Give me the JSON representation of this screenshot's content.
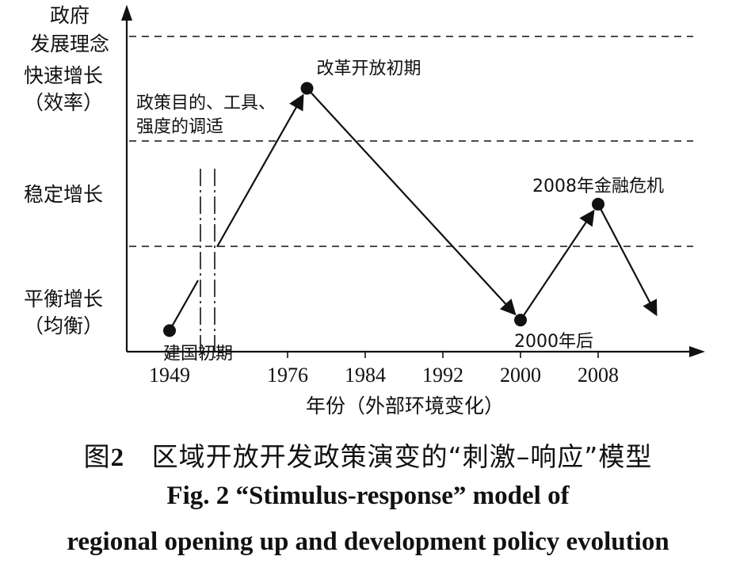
{
  "chart_data": {
    "type": "line",
    "y_axis_title": "政府\n发展理念",
    "y_levels": [
      {
        "label": "快速增长\n（效率）",
        "band": "high"
      },
      {
        "label": "稳定增长",
        "band": "mid"
      },
      {
        "label": "平衡增长\n（均衡）",
        "band": "low"
      }
    ],
    "x_tick_labels": [
      "1949",
      "1976",
      "1984",
      "1992",
      "2000",
      "2008"
    ],
    "x_label": "年份（外部环境变化）",
    "axis_break_after": "1949",
    "gridlines": "dashed horizontal band boundaries",
    "series": [
      {
        "points": [
          {
            "x": 1949,
            "level": 0.2,
            "label": "建国初期",
            "marker": true
          },
          {
            "x": 1978,
            "level": 2.5,
            "label": "改革开放初期",
            "marker": true
          },
          {
            "x": 2000,
            "level": 0.3,
            "label": "2000年后",
            "marker": true
          },
          {
            "x": 2008,
            "level": 1.4,
            "label": "2008年金融危机",
            "marker": true
          },
          {
            "x": 2014,
            "level": 0.35,
            "label": "",
            "marker": false
          }
        ]
      }
    ],
    "annotation": "政策目的、工具、\n强度的调适"
  },
  "caption": {
    "cn_prefix": "图",
    "cn_number": "2",
    "cn_text": "区域开放开发政策演变的“刺激–响应”模型",
    "en_line1": "Fig. 2  “Stimulus-response” model of",
    "en_line2": "regional opening up and development policy evolution"
  }
}
